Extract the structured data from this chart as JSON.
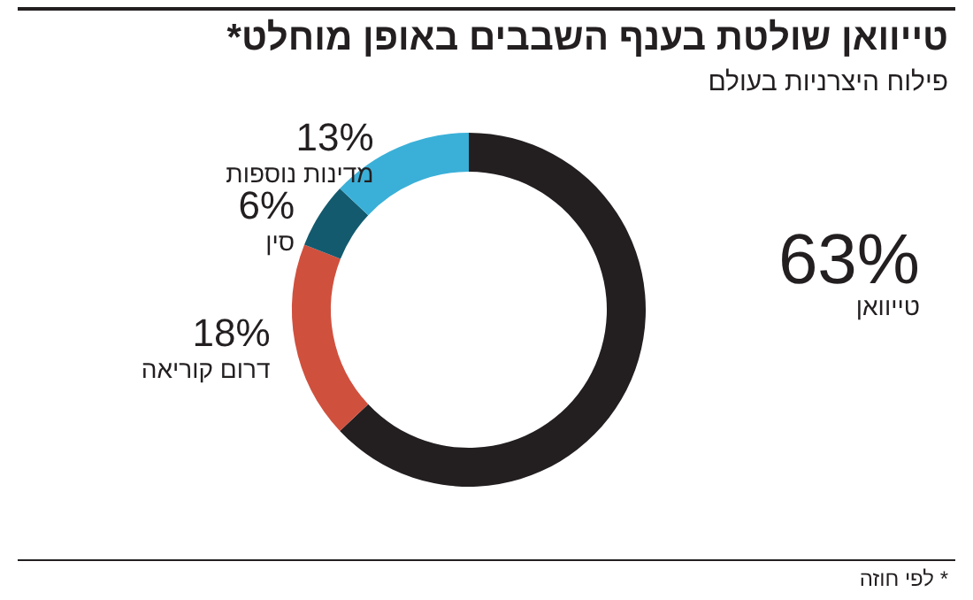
{
  "chart_data": {
    "type": "donut",
    "title": "טייוואן שולטת בענף השבבים באופן מוחלט*",
    "subtitle": "פילוח היצרניות בעולם",
    "categories": [
      "טייוואן",
      "דרום קוריאה",
      "סין",
      "מדינות נוספות"
    ],
    "values": [
      63,
      18,
      6,
      13
    ],
    "value_labels": [
      "63%",
      "18%",
      "6%",
      "13%"
    ],
    "colors": [
      "#231f20",
      "#d0503e",
      "#135a6e",
      "#3ab0d8"
    ],
    "annotations": [
      "* לפי חוזה"
    ],
    "legend": false
  }
}
